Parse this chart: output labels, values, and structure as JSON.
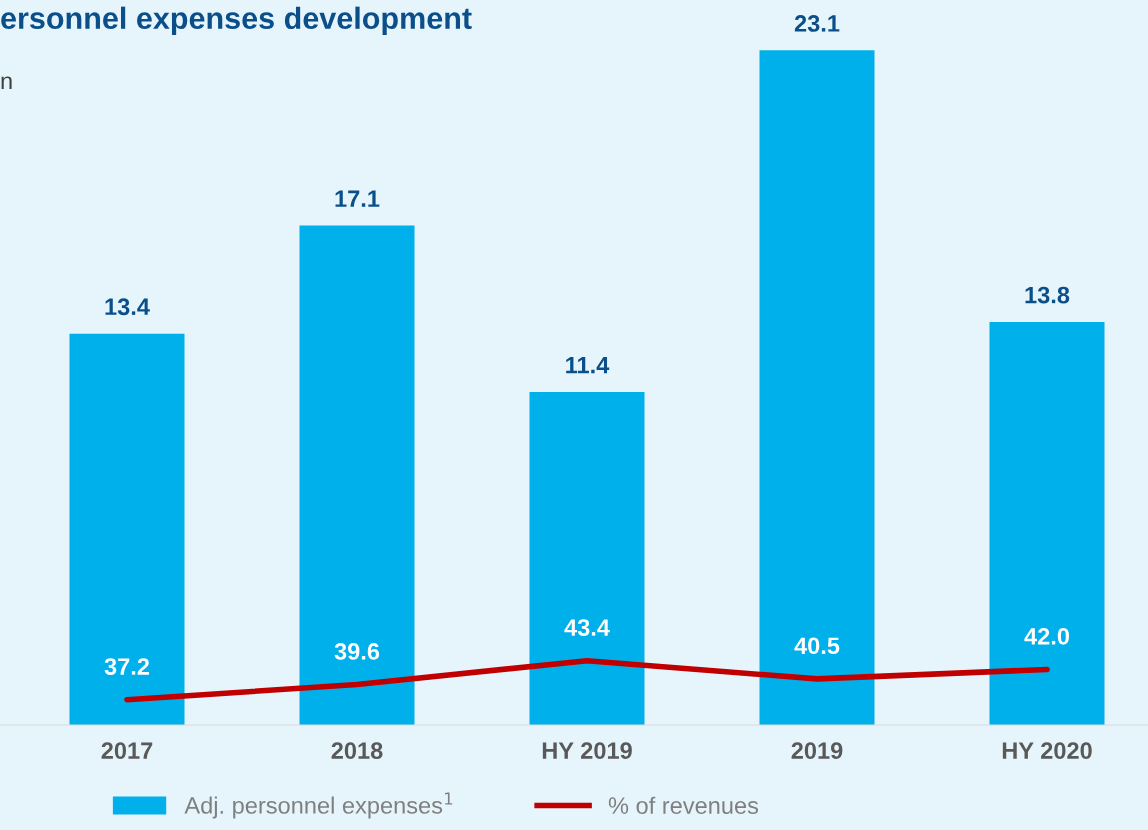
{
  "chart_data": {
    "type": "bar",
    "title": "ersonnel expenses development",
    "annotations": [
      "n"
    ],
    "categories": [
      "2017",
      "2018",
      "HY 2019",
      "2019",
      "HY 2020"
    ],
    "series": [
      {
        "name": "Adj. personnel expenses$^{1}$",
        "color": "#00b0eb",
        "values": [
          13.4,
          17.1,
          11.4,
          23.1,
          13.8
        ]
      },
      {
        "name": "% of revenues",
        "type": "line",
        "axis": "y2",
        "color": "#c00000",
        "values": [
          37.2,
          39.6,
          43.4,
          40.5,
          42.0
        ],
        "value_labels": [
          "37.2",
          "39.6",
          "43.4",
          "40.5",
          "42.0"
        ]
      }
    ],
    "data_labels": true,
    "legend": "bottom",
    "tick_labels": "x",
    "grid": false
  }
}
